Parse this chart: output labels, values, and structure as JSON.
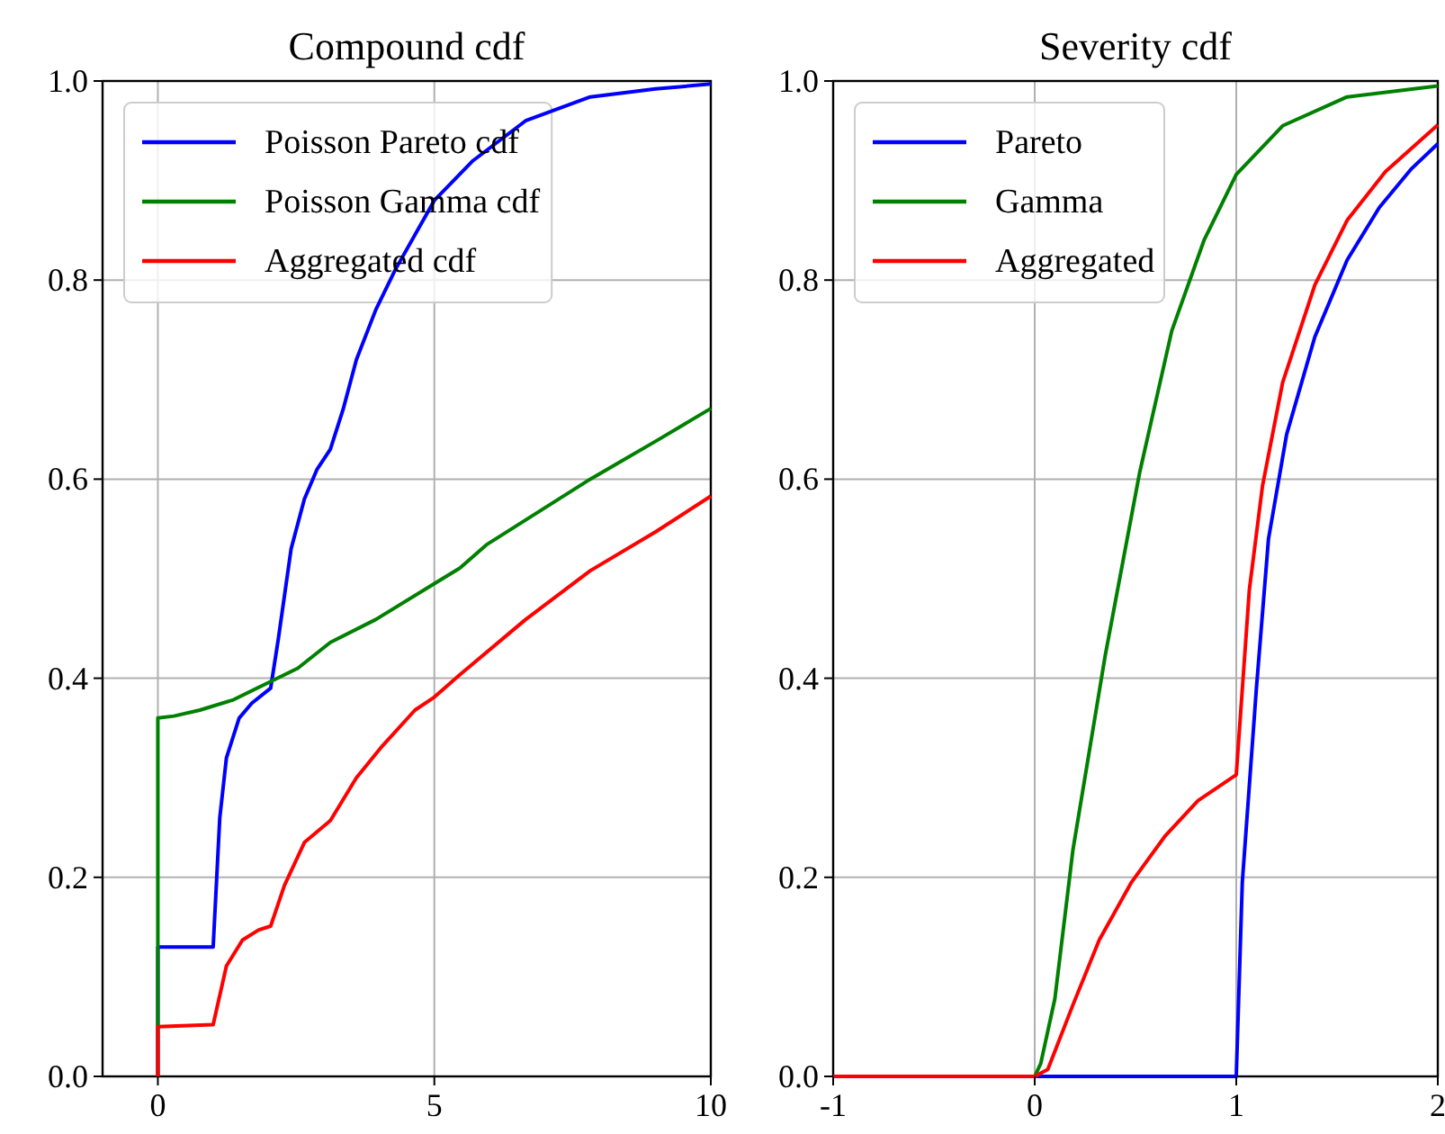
{
  "chart_data": [
    {
      "type": "line",
      "title": "Compound cdf",
      "xlim": [
        -1,
        10
      ],
      "xticks": [
        0,
        5,
        10
      ],
      "ylim": [
        0,
        1
      ],
      "yticks": [
        {
          "value": 0,
          "label": "0.0"
        },
        {
          "value": 0.2,
          "label": "0.2"
        },
        {
          "value": 0.4,
          "label": "0.4"
        },
        {
          "value": 0.6,
          "label": "0.6"
        },
        {
          "value": 0.8,
          "label": "0.8"
        },
        {
          "value": 1,
          "label": "1.0"
        }
      ],
      "grid": true,
      "legend": "top left",
      "series": [
        {
          "name": "Poisson Pareto cdf",
          "color": "#0000ff",
          "x": [
            0,
            0,
            1.0,
            1.12,
            1.24,
            1.47,
            1.7,
            2.04,
            2.18,
            2.41,
            2.65,
            2.88,
            3.12,
            3.35,
            3.59,
            3.94,
            4.29,
            5.0,
            5.7,
            6.65,
            7.82,
            9.0,
            10
          ],
          "values": [
            0,
            0.13,
            0.13,
            0.26,
            0.32,
            0.36,
            0.375,
            0.39,
            0.44,
            0.53,
            0.58,
            0.61,
            0.63,
            0.67,
            0.72,
            0.77,
            0.81,
            0.88,
            0.92,
            0.96,
            0.984,
            0.992,
            0.997
          ]
        },
        {
          "name": "Poisson Gamma cdf",
          "color": "#008000",
          "x": [
            0,
            0,
            0.29,
            0.76,
            1.35,
            1.94,
            2.53,
            3.12,
            3.94,
            5.0,
            5.47,
            5.94,
            6.88,
            7.82,
            9.0,
            10
          ],
          "values": [
            0,
            0.36,
            0.362,
            0.368,
            0.378,
            0.394,
            0.41,
            0.436,
            0.459,
            0.495,
            0.511,
            0.534,
            0.567,
            0.6,
            0.638,
            0.671
          ]
        },
        {
          "name": "Aggregated cdf",
          "color": "#ff0000",
          "x": [
            0,
            0,
            1.0,
            1.24,
            1.53,
            1.82,
            2.04,
            2.29,
            2.65,
            3.12,
            3.59,
            4.06,
            4.65,
            5.0,
            5.47,
            6.65,
            7.82,
            9.0,
            10
          ],
          "values": [
            0,
            0.05,
            0.052,
            0.111,
            0.137,
            0.147,
            0.151,
            0.192,
            0.235,
            0.257,
            0.3,
            0.332,
            0.368,
            0.381,
            0.404,
            0.459,
            0.508,
            0.547,
            0.583
          ]
        }
      ]
    },
    {
      "type": "line",
      "title": "Severity cdf",
      "xlim": [
        -1,
        2
      ],
      "xticks": [
        -1,
        0,
        1,
        2
      ],
      "ylim": [
        0,
        1
      ],
      "yticks": [
        {
          "value": 0,
          "label": "0.0"
        },
        {
          "value": 0.2,
          "label": "0.2"
        },
        {
          "value": 0.4,
          "label": "0.4"
        },
        {
          "value": 0.6,
          "label": "0.6"
        },
        {
          "value": 0.8,
          "label": "0.8"
        },
        {
          "value": 1,
          "label": "1.0"
        }
      ],
      "grid": true,
      "legend": "top left",
      "series": [
        {
          "name": "Pareto",
          "color": "#0000ff",
          "x": [
            -1,
            1,
            1.03,
            1.1,
            1.16,
            1.25,
            1.39,
            1.55,
            1.71,
            1.87,
            2.0
          ],
          "values": [
            0,
            0,
            0.195,
            0.39,
            0.54,
            0.645,
            0.743,
            0.82,
            0.873,
            0.912,
            0.937
          ]
        },
        {
          "name": "Gamma",
          "color": "#008000",
          "x": [
            -1,
            0,
            0.03,
            0.1,
            0.19,
            0.35,
            0.52,
            0.68,
            0.84,
            1.0,
            1.23,
            1.55,
            2.0
          ],
          "values": [
            0,
            0,
            0.013,
            0.078,
            0.228,
            0.423,
            0.606,
            0.749,
            0.84,
            0.906,
            0.955,
            0.984,
            0.995
          ]
        },
        {
          "name": "Aggregated",
          "color": "#ff0000",
          "x": [
            -1,
            0,
            0.065,
            0.19,
            0.32,
            0.48,
            0.645,
            0.81,
            1.0,
            1.065,
            1.13,
            1.23,
            1.39,
            1.55,
            1.74,
            2.0
          ],
          "values": [
            0,
            0,
            0.007,
            0.072,
            0.137,
            0.195,
            0.241,
            0.277,
            0.303,
            0.489,
            0.593,
            0.697,
            0.795,
            0.86,
            0.909,
            0.956
          ]
        }
      ]
    }
  ]
}
